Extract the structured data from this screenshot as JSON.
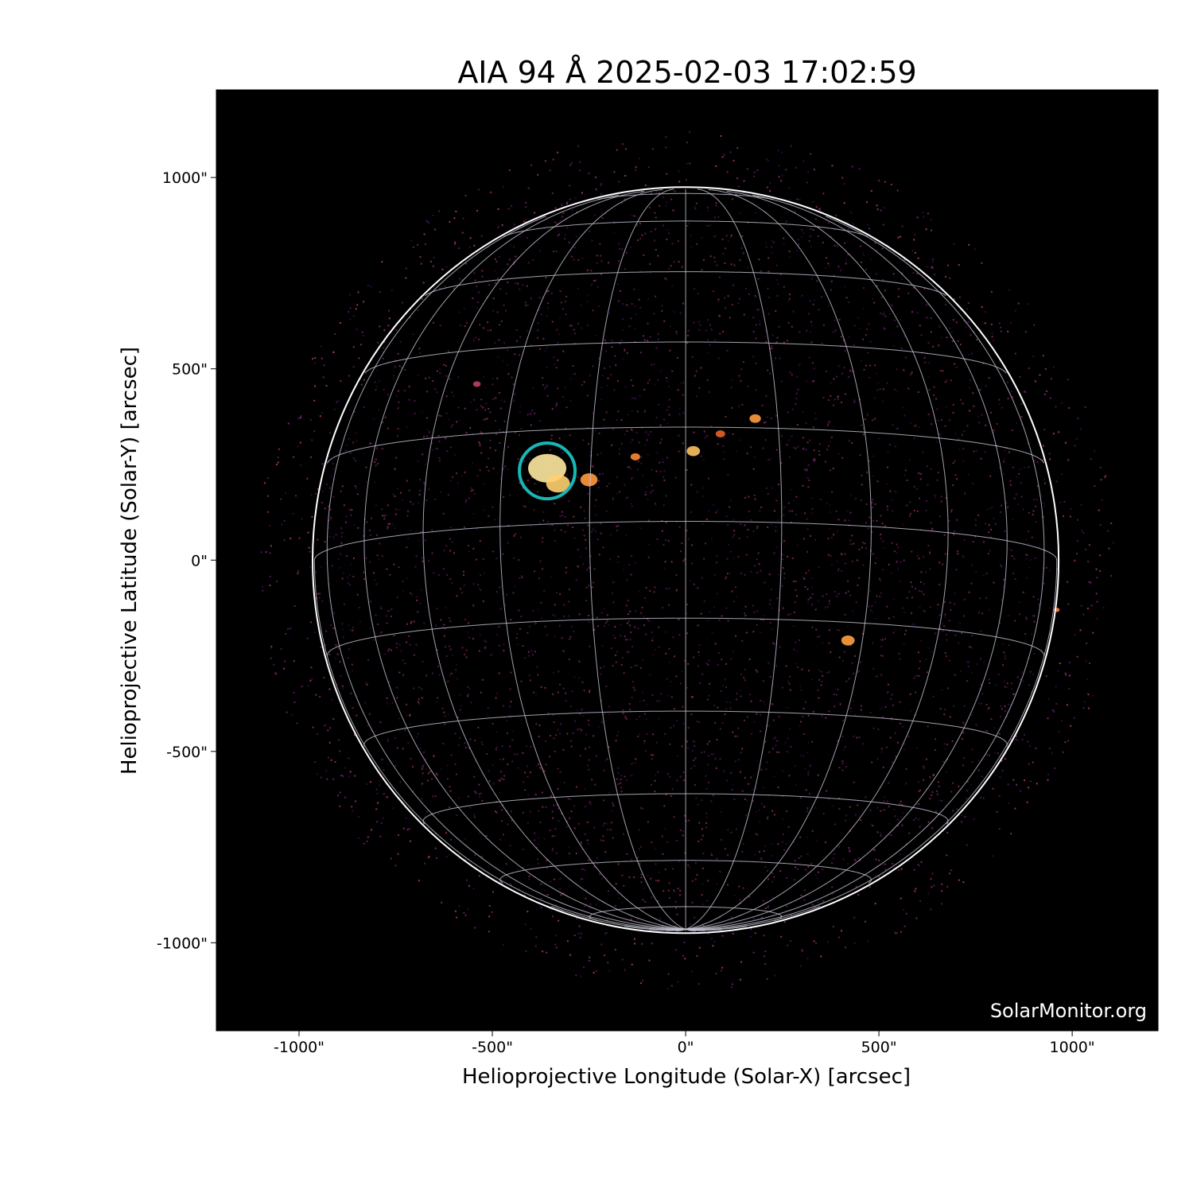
{
  "chart_data": {
    "type": "heatmap",
    "title": "AIA 94 Å 2025-02-03 17:02:59",
    "xlabel": "Helioprojective Longitude (Solar-X) [arcsec]",
    "ylabel": "Helioprojective Latitude (Solar-Y) [arcsec]",
    "xlim": [
      -1214,
      1222
    ],
    "ylim": [
      -1230,
      1229
    ],
    "xticks": [
      -1000,
      -500,
      0,
      500,
      1000
    ],
    "xtick_labels": [
      "-1000\"",
      "-500\"",
      "0\"",
      "500\"",
      "1000\""
    ],
    "yticks": [
      1000,
      500,
      0,
      -500,
      -1000
    ],
    "ytick_labels": [
      "1000\"",
      "500\"",
      "0\"",
      "-500\"",
      "-1000\""
    ],
    "colormap": "sdoaia94",
    "background_color": "#000000",
    "solar_radius_arcsec": 965,
    "heliographic_grid": {
      "spacing_deg": 15,
      "color": "#c8c8d8"
    },
    "limb_color": "#ffffff",
    "marker": {
      "shape": "circle",
      "x": -358,
      "y": 233,
      "radius_arcsec": 72,
      "color": "#19b6b6"
    },
    "credit": "SolarMonitor.org"
  }
}
